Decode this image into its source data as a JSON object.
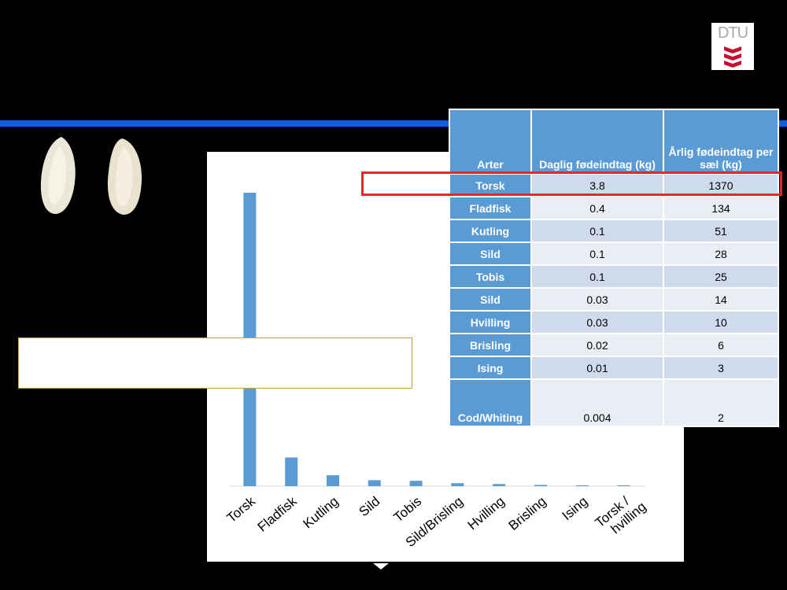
{
  "logo": {
    "text": "DTU",
    "color": "#c8102e"
  },
  "table": {
    "headers": [
      "Arter",
      "Daglig  fødeindtag (kg)",
      "Årlig fødeindtag per sæl (kg)"
    ],
    "rows": [
      [
        "Torsk",
        "3.8",
        "1370"
      ],
      [
        "Fladfisk",
        "0.4",
        "134"
      ],
      [
        "Kutling",
        "0.1",
        "51"
      ],
      [
        "Sild",
        "0.1",
        "28"
      ],
      [
        "Tobis",
        "0.1",
        "25"
      ],
      [
        "Sild",
        "0.03",
        "14"
      ],
      [
        "Hvilling",
        "0.03",
        "10"
      ],
      [
        "Brisling",
        "0.02",
        "6"
      ],
      [
        "Ising",
        "0.01",
        "3"
      ],
      [
        "Cod/Whiting",
        "0.004",
        "2"
      ]
    ],
    "header_color": "#5b9bd5",
    "highlight_color": "#e8252b"
  },
  "chart_data": {
    "type": "bar",
    "categories": [
      "Torsk",
      "Fladfisk",
      "Kutling",
      "Sild",
      "Tobis",
      "Sild/Brisling",
      "Hvilling",
      "Brisling",
      "Ising",
      "Torsk / hvilling"
    ],
    "values": [
      1370,
      134,
      51,
      28,
      25,
      14,
      10,
      6,
      3,
      2
    ],
    "bar_color": "#5b9bd5",
    "title": "",
    "xlabel": "",
    "ylabel": "",
    "ylim": [
      0,
      1370
    ],
    "grid": false
  }
}
